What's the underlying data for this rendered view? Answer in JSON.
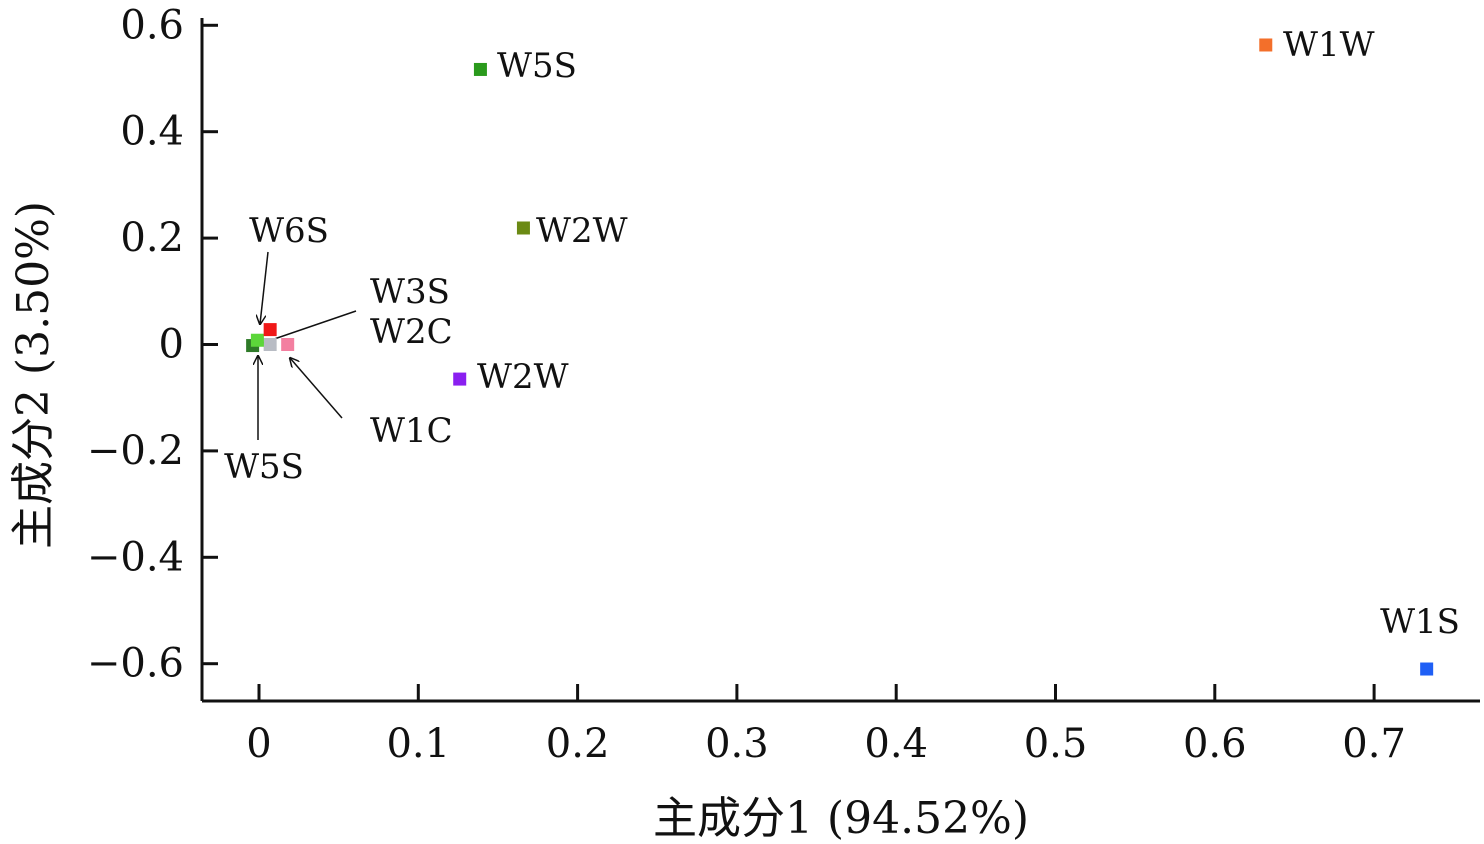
{
  "chart_data": {
    "type": "scatter",
    "xlabel": "主成分1 (94.52%)",
    "ylabel": "主成分2 (3.50%)",
    "xlim": [
      -0.036,
      0.765
    ],
    "ylim": [
      -0.67,
      0.61
    ],
    "xticks": [
      0,
      0.1,
      0.2,
      0.3,
      0.4,
      0.5,
      0.6,
      0.7
    ],
    "xtick_labels": [
      "0",
      "0.1",
      "0.2",
      "0.3",
      "0.4",
      "0.5",
      "0.6",
      "0.7"
    ],
    "yticks": [
      0.6,
      0.4,
      0.2,
      0,
      -0.2,
      -0.4,
      -0.6
    ],
    "ytick_labels": [
      "0.6",
      "0.4",
      "0.2",
      "0",
      "−0.2",
      "−0.4",
      "−0.6"
    ],
    "grid": false,
    "points": [
      {
        "label": "W1W",
        "x": 0.632,
        "y": 0.563,
        "color": "#f36f2a"
      },
      {
        "label": "W5S",
        "x": 0.139,
        "y": 0.517,
        "color": "#2a9a1c"
      },
      {
        "label": "W2W",
        "x": 0.166,
        "y": 0.219,
        "color": "#6b8a14"
      },
      {
        "label": "W2W",
        "x": 0.126,
        "y": -0.065,
        "color": "#8a1ff0"
      },
      {
        "label": "W1S",
        "x": 0.733,
        "y": -0.61,
        "color": "#1f5ff5"
      },
      {
        "label": "W3S",
        "x": 0.007,
        "y": 0.028,
        "color": "#f01818"
      },
      {
        "label": "W1C",
        "x": 0.018,
        "y": 0.0,
        "color": "#f37fa0"
      },
      {
        "label": "W2C",
        "x": 0.007,
        "y": 0.0,
        "color": "#b8bcc4"
      },
      {
        "label": "W6S",
        "x": -0.001,
        "y": 0.008,
        "color": "#5cd63a"
      },
      {
        "label": "W5S",
        "x": -0.004,
        "y": -0.002,
        "color": "#2e7a28"
      }
    ]
  }
}
